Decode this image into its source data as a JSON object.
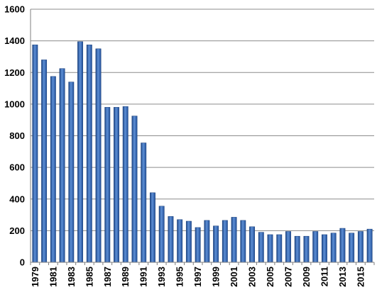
{
  "chart_data": {
    "type": "bar",
    "title": "",
    "xlabel": "",
    "ylabel": "",
    "ylim": [
      0,
      1600
    ],
    "yticks": [
      0,
      200,
      400,
      600,
      800,
      1000,
      1200,
      1400,
      1600
    ],
    "grid": true,
    "legend": "none",
    "bar_color": "#3a6bb5",
    "categories": [
      1979,
      1980,
      1981,
      1982,
      1983,
      1984,
      1985,
      1986,
      1987,
      1988,
      1989,
      1990,
      1991,
      1992,
      1993,
      1994,
      1995,
      1996,
      1997,
      1998,
      1999,
      2000,
      2001,
      2002,
      2003,
      2004,
      2005,
      2006,
      2007,
      2008,
      2009,
      2010,
      2011,
      2012,
      2013,
      2014,
      2015,
      2016
    ],
    "tick_labels": [
      "1979",
      "1981",
      "1983",
      "1985",
      "1987",
      "1989",
      "1991",
      "1993",
      "1995",
      "1997",
      "1999",
      "2001",
      "2003",
      "2005",
      "2007",
      "2009",
      "2011",
      "2013",
      "2015"
    ],
    "values": [
      1375,
      1280,
      1175,
      1225,
      1140,
      1395,
      1375,
      1350,
      980,
      980,
      985,
      925,
      755,
      440,
      355,
      290,
      270,
      260,
      220,
      265,
      230,
      265,
      285,
      265,
      225,
      190,
      175,
      175,
      195,
      165,
      165,
      195,
      175,
      185,
      215,
      185,
      195,
      210
    ]
  }
}
